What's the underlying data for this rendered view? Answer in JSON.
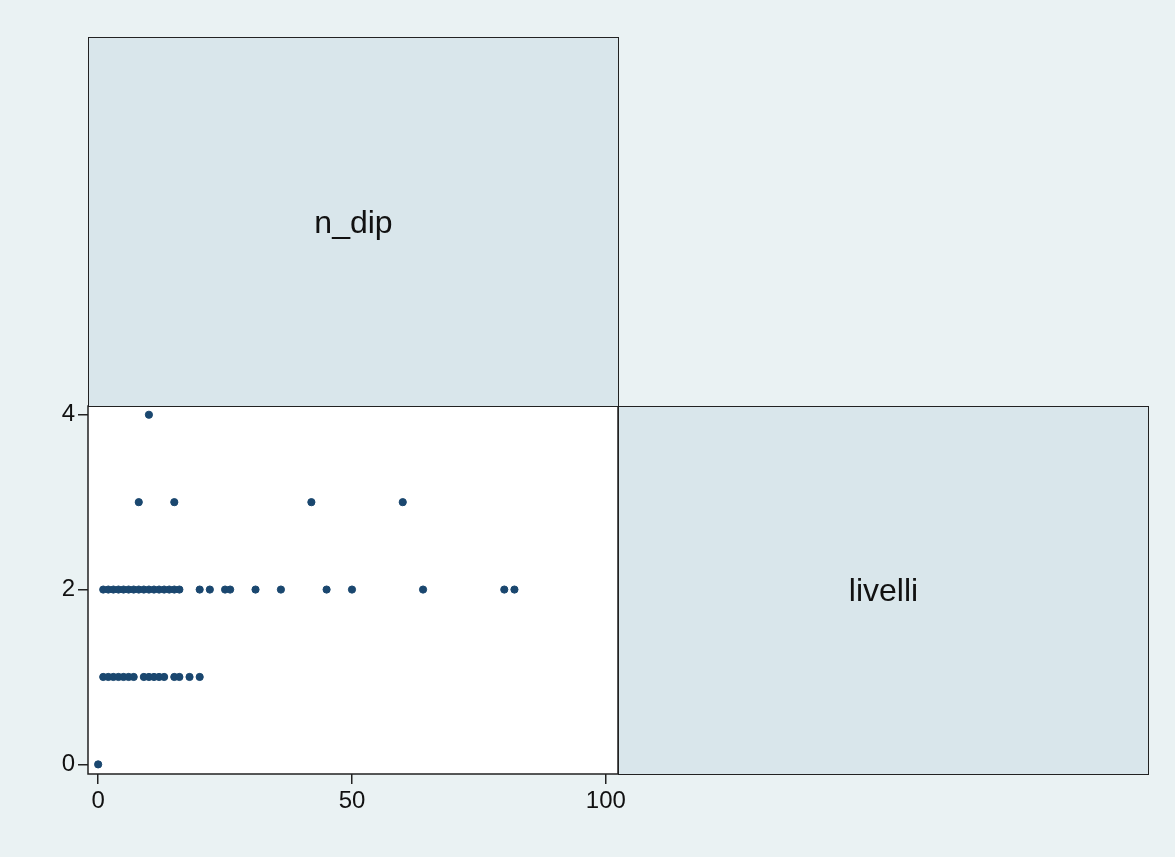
{
  "chart_data": {
    "type": "scatter",
    "xlabel": "n_dip",
    "annotations": [
      "livelli"
    ],
    "marker": "circle",
    "grid": false,
    "legend": false,
    "xlim": [
      -2,
      102.4
    ],
    "ylim": [
      -0.11,
      4.1
    ],
    "xticks": [
      0,
      50,
      100
    ],
    "yticks": [
      0,
      2,
      4
    ],
    "series": [
      {
        "color": "#1a476f",
        "x": [
          0,
          1,
          2,
          3,
          4,
          5,
          6,
          7,
          9,
          10,
          11,
          12,
          13,
          15,
          16,
          18,
          20,
          1,
          2,
          3,
          4,
          5,
          6,
          7,
          8,
          9,
          10,
          11,
          12,
          13,
          14,
          15,
          16,
          20,
          22,
          25,
          26,
          31,
          36,
          45,
          50,
          64,
          80,
          82,
          8,
          15,
          42,
          60,
          10
        ],
        "values": [
          0,
          1,
          1,
          1,
          1,
          1,
          1,
          1,
          1,
          1,
          1,
          1,
          1,
          1,
          1,
          1,
          1,
          2,
          2,
          2,
          2,
          2,
          2,
          2,
          2,
          2,
          2,
          2,
          2,
          2,
          2,
          2,
          2,
          2,
          2,
          2,
          2,
          2,
          2,
          2,
          2,
          2,
          2,
          2,
          3,
          3,
          3,
          3,
          4
        ]
      }
    ]
  }
}
